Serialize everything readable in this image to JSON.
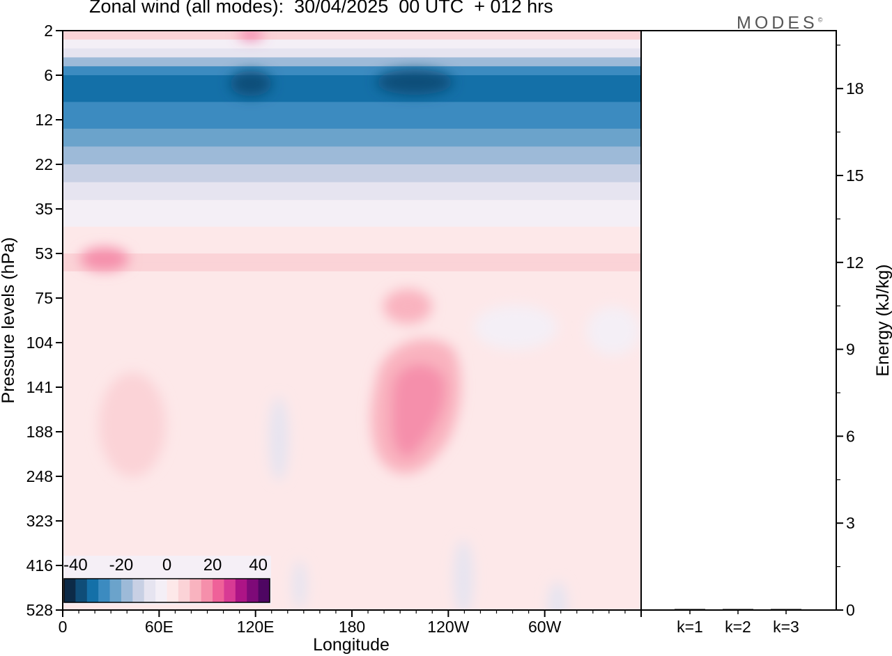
{
  "chart_data": {
    "type": "heatmap",
    "title": "Zonal wind (all modes):  30/04/2025  00 UTC  + 012 hrs",
    "xlabel": "Longitude",
    "ylabel": "Pressure levels (hPa)",
    "ylabel_right": "Energy (kJ/kg)",
    "x_ticks": [
      "0",
      "60E",
      "120E",
      "180",
      "120W",
      "60W"
    ],
    "x_tick_degrees": [
      0,
      60,
      120,
      180,
      240,
      300
    ],
    "x_range": [
      0,
      360
    ],
    "y_levels": [
      "2",
      "6",
      "12",
      "22",
      "35",
      "53",
      "75",
      "104",
      "141",
      "188",
      "248",
      "323",
      "416",
      "528"
    ],
    "energy_ticks": [
      "0",
      "3",
      "6",
      "9",
      "12",
      "15",
      "18"
    ],
    "energy_values": [
      0,
      3,
      6,
      9,
      12,
      15,
      18
    ],
    "energy_range": [
      0,
      20
    ],
    "energy_bars": [
      {
        "label": "k=1",
        "value": 0.03
      },
      {
        "label": "k=2",
        "value": 0.01
      },
      {
        "label": "k=3",
        "value": 0.01
      }
    ],
    "colorbar_labels": [
      "-40",
      "-20",
      "0",
      "20",
      "40"
    ],
    "colorbar_colors": [
      "#0c2a47",
      "#0f4d78",
      "#1470a8",
      "#3c8bc0",
      "#6ba3cb",
      "#9dbad8",
      "#c8d0e4",
      "#e6e4f0",
      "#f4eff6",
      "#fde8e9",
      "#fbd3d7",
      "#f9b3bf",
      "#f58fab",
      "#ef6199",
      "#d83a94",
      "#ad1486",
      "#7e0a78",
      "#4e0662"
    ],
    "wind_profile": [
      {
        "level": "2",
        "value": 8
      },
      {
        "level": "6",
        "value": -34
      },
      {
        "level": "12",
        "value": -27
      },
      {
        "level": "22",
        "value": -15
      },
      {
        "level": "35",
        "value": -2
      },
      {
        "level": "53",
        "value": 6
      },
      {
        "level": "75",
        "value": 2
      },
      {
        "level": "104",
        "value": 1
      },
      {
        "level": "141",
        "value": 2
      },
      {
        "level": "188",
        "value": 2
      },
      {
        "level": "248",
        "value": 1
      },
      {
        "level": "323",
        "value": 1
      },
      {
        "level": "416",
        "value": 0
      },
      {
        "level": "528",
        "value": 0
      }
    ],
    "brand": "MODES",
    "brand_mark": "©"
  }
}
